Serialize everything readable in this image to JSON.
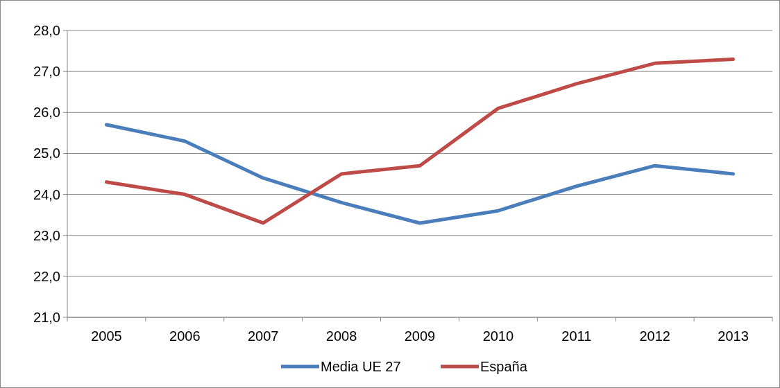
{
  "chart_data": {
    "type": "line",
    "categories": [
      "2005",
      "2006",
      "2007",
      "2008",
      "2009",
      "2010",
      "2011",
      "2012",
      "2013"
    ],
    "series": [
      {
        "name": "Media UE 27",
        "color": "#4a7ebb",
        "values": [
          25.7,
          25.3,
          24.4,
          23.8,
          23.3,
          23.6,
          24.2,
          24.7,
          24.5
        ]
      },
      {
        "name": "España",
        "color": "#be4b48",
        "values": [
          24.3,
          24.0,
          23.3,
          24.5,
          24.7,
          26.1,
          26.7,
          27.2,
          27.3
        ]
      }
    ],
    "ylim": [
      21,
      28
    ],
    "yticks": [
      {
        "value": 21,
        "label": "21,0"
      },
      {
        "value": 22,
        "label": "22,0"
      },
      {
        "value": 23,
        "label": "23,0"
      },
      {
        "value": 24,
        "label": "24,0"
      },
      {
        "value": 25,
        "label": "25,0"
      },
      {
        "value": 26,
        "label": "26,0"
      },
      {
        "value": 27,
        "label": "27,0"
      },
      {
        "value": 28,
        "label": "28,0"
      }
    ],
    "grid": "y",
    "legend": "bottom",
    "marker": "none",
    "line_style": "solid"
  }
}
